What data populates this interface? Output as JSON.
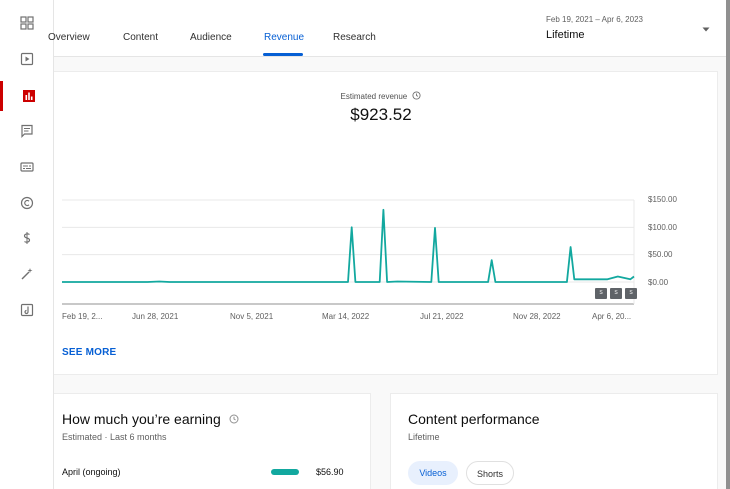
{
  "tabs": [
    {
      "label": "Overview"
    },
    {
      "label": "Content"
    },
    {
      "label": "Audience"
    },
    {
      "label": "Revenue",
      "active": true
    },
    {
      "label": "Research"
    }
  ],
  "date_range": {
    "range": "Feb 19, 2021 – Apr 6, 2023",
    "period": "Lifetime"
  },
  "sidebar": {
    "icons": [
      "dashboard-icon",
      "content-icon",
      "analytics-icon",
      "comments-icon",
      "subtitles-icon",
      "copyright-icon",
      "earn-icon",
      "customization-icon",
      "audio-library-icon"
    ],
    "active_index": 2,
    "accent_color": "#cc0000"
  },
  "revenue": {
    "title": "Estimated revenue",
    "value": "$923.52",
    "see_more": "SEE MORE"
  },
  "chart_data": {
    "type": "line",
    "series": [
      {
        "color": "#12a89f",
        "x": [
          "2021-02-19",
          "2021-06-15",
          "2021-07-01",
          "2021-07-15",
          "2022-03-14",
          "2022-03-19",
          "2022-03-24",
          "2022-04-26",
          "2022-05-01",
          "2022-05-06",
          "2022-05-20",
          "2022-07-05",
          "2022-07-10",
          "2022-07-15",
          "2022-09-20",
          "2022-09-25",
          "2022-09-30",
          "2023-01-05",
          "2023-01-10",
          "2023-01-15",
          "2023-02-05",
          "2023-03-01",
          "2023-03-15",
          "2023-04-01",
          "2023-04-06"
        ],
        "y": [
          0,
          0,
          1,
          0,
          0,
          100,
          0,
          0,
          132,
          0,
          1,
          0,
          99,
          0,
          0,
          40,
          0,
          0,
          64,
          5,
          5,
          5,
          10,
          5,
          10
        ]
      }
    ],
    "x_tick_labels": [
      "Feb 19, 2...",
      "Jun 28, 2021",
      "Nov 5, 2021",
      "Mar 14, 2022",
      "Jul 21, 2022",
      "Nov 28, 2022",
      "Apr 6, 20..."
    ],
    "y_tick_labels": [
      "$0.00",
      "$50.00",
      "$100.00",
      "$150.00"
    ],
    "ylim": [
      0,
      150
    ],
    "grid": true,
    "badges": [
      "S",
      "S",
      "S"
    ]
  },
  "earning_card": {
    "title": "How much you’re earning",
    "subtitle": "Estimated · Last 6 months",
    "row_label": "April (ongoing)",
    "row_value": "$56.90",
    "bar_fraction": 0.2
  },
  "performance_card": {
    "title": "Content performance",
    "subtitle": "Lifetime",
    "chips": [
      {
        "label": "Videos",
        "active": true
      },
      {
        "label": "Shorts",
        "active": false
      }
    ]
  }
}
